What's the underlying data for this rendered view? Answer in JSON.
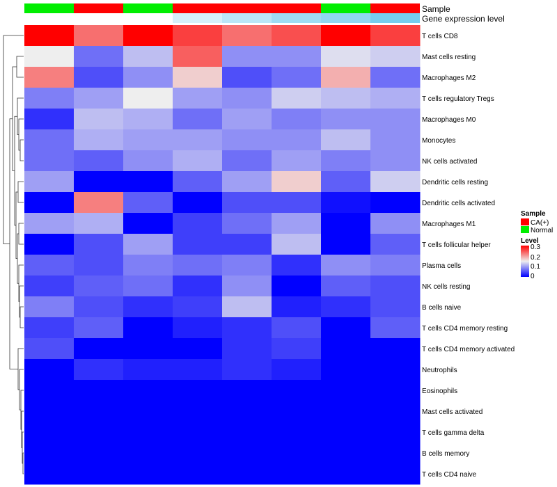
{
  "chart_data": {
    "type": "heatmap",
    "annotation_tracks": {
      "sample_label": "Sample",
      "expression_label": "Gene expression level"
    },
    "sample_groups": [
      "Normal",
      "CA(+)",
      "Normal",
      "CA(+)",
      "CA(+)",
      "CA(+)",
      "Normal",
      "CA(+)"
    ],
    "gene_expression_levels": [
      0.0,
      0.0,
      0.0,
      0.3,
      0.5,
      0.7,
      0.8,
      1.0
    ],
    "rows": [
      "T cells CD8",
      "Mast cells resting",
      "Macrophages M2",
      "T cells regulatory  Tregs",
      "Macrophages M0",
      "Monocytes",
      "NK cells activated",
      "Dendritic cells resting",
      "Dendritic cells activated",
      "Macrophages M1",
      "T cells follicular helper",
      "Plasma cells",
      "NK cells resting",
      "B cells naive",
      "T cells CD4 memory resting",
      "T cells CD4 memory activated",
      "Neutrophils",
      "Eosinophils",
      "Mast cells activated",
      "T cells gamma delta",
      "B cells memory",
      "T cells CD4 naive"
    ],
    "values": [
      [
        0.3,
        0.23,
        0.3,
        0.26,
        0.23,
        0.25,
        0.3,
        0.26
      ],
      [
        0.15,
        0.07,
        0.12,
        0.24,
        0.09,
        0.09,
        0.14,
        0.13
      ],
      [
        0.22,
        0.05,
        0.09,
        0.17,
        0.05,
        0.07,
        0.19,
        0.07
      ],
      [
        0.08,
        0.1,
        0.15,
        0.1,
        0.09,
        0.13,
        0.12,
        0.11
      ],
      [
        0.03,
        0.12,
        0.11,
        0.07,
        0.1,
        0.08,
        0.09,
        0.09
      ],
      [
        0.07,
        0.11,
        0.1,
        0.1,
        0.09,
        0.09,
        0.12,
        0.09
      ],
      [
        0.07,
        0.06,
        0.09,
        0.11,
        0.07,
        0.1,
        0.08,
        0.09
      ],
      [
        0.1,
        0.0,
        0.0,
        0.06,
        0.1,
        0.17,
        0.06,
        0.13
      ],
      [
        0.0,
        0.22,
        0.06,
        0.0,
        0.05,
        0.05,
        0.01,
        0.0
      ],
      [
        0.1,
        0.11,
        0.0,
        0.04,
        0.07,
        0.1,
        0.0,
        0.09
      ],
      [
        0.0,
        0.05,
        0.1,
        0.04,
        0.04,
        0.12,
        0.0,
        0.06
      ],
      [
        0.06,
        0.05,
        0.08,
        0.07,
        0.08,
        0.03,
        0.09,
        0.08
      ],
      [
        0.04,
        0.06,
        0.07,
        0.03,
        0.09,
        0.0,
        0.06,
        0.05
      ],
      [
        0.08,
        0.05,
        0.03,
        0.04,
        0.12,
        0.02,
        0.03,
        0.05
      ],
      [
        0.04,
        0.06,
        0.0,
        0.02,
        0.03,
        0.05,
        0.0,
        0.06
      ],
      [
        0.05,
        0.0,
        0.0,
        0.0,
        0.03,
        0.04,
        0.0,
        0.0
      ],
      [
        0.0,
        0.03,
        0.02,
        0.02,
        0.03,
        0.02,
        0.0,
        0.0
      ],
      [
        0.0,
        0.0,
        0.0,
        0.0,
        0.0,
        0.0,
        0.0,
        0.0
      ],
      [
        0.0,
        0.0,
        0.0,
        0.0,
        0.0,
        0.0,
        0.0,
        0.0
      ],
      [
        0.0,
        0.0,
        0.0,
        0.0,
        0.0,
        0.0,
        0.0,
        0.0
      ],
      [
        0.0,
        0.0,
        0.0,
        0.0,
        0.0,
        0.0,
        0.0,
        0.0
      ],
      [
        0.0,
        0.0,
        0.0,
        0.0,
        0.0,
        0.0,
        0.0,
        0.0
      ]
    ],
    "color_scale": {
      "min": 0,
      "mid": 0.15,
      "max": 0.3,
      "low_color": "#0000ff",
      "mid_color": "#eeeeee",
      "high_color": "#ff0000"
    },
    "expression_scale": {
      "low_color": "#ffffff",
      "high_color": "#76cdee"
    },
    "legend": {
      "position": "right",
      "sample_title": "Sample",
      "sample_entries": [
        {
          "label": "CA(+)",
          "color": "#ff0000"
        },
        {
          "label": "Normal",
          "color": "#00ee00"
        }
      ],
      "level_title": "Level",
      "level_ticks": [
        "0.3",
        "0.2",
        "0.1",
        "0"
      ]
    },
    "dendrogram": {
      "side": "left",
      "clusters": 22
    }
  }
}
